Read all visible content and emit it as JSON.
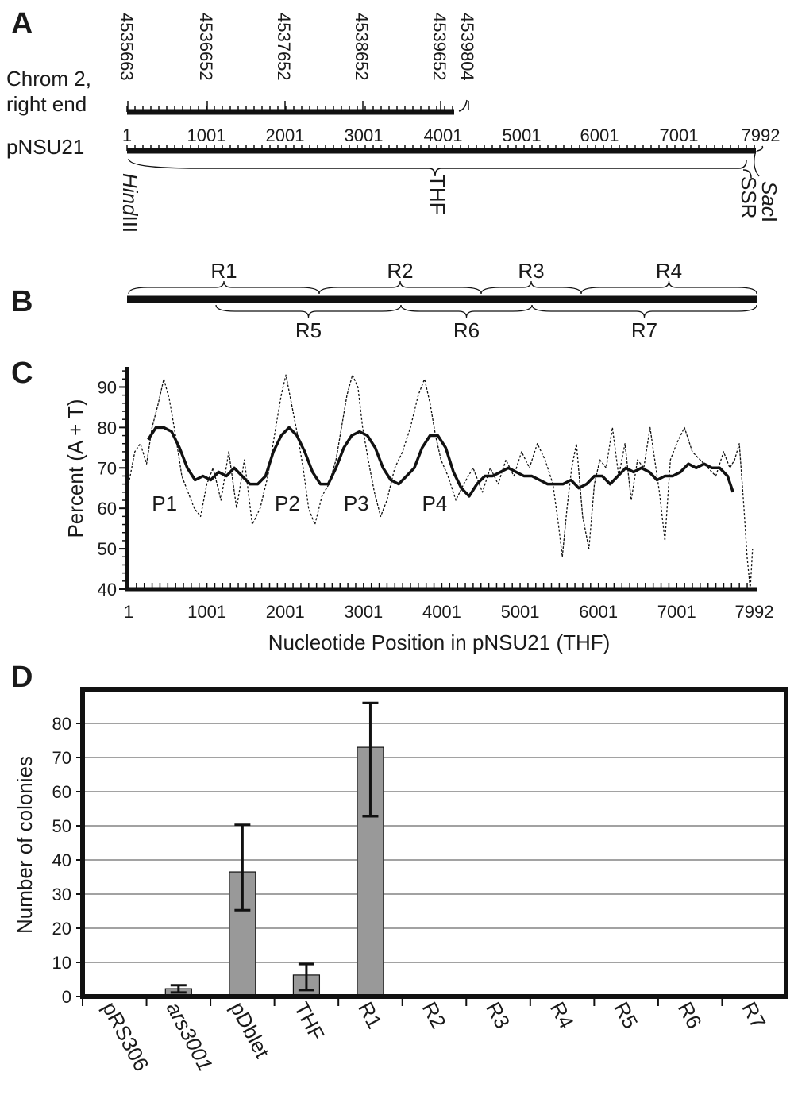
{
  "panels": {
    "a": "A",
    "b": "B",
    "c": "C",
    "d": "D"
  },
  "panel_a": {
    "chrom_label_1": "Chrom 2,",
    "chrom_label_2": "right end",
    "chrom_coords": [
      "4535663",
      "4536652",
      "4537652",
      "4538652",
      "4539652",
      "4539804"
    ],
    "plasmid_label": "pNSU21",
    "plasmid_ticks": [
      "1",
      "1001",
      "2001",
      "3001",
      "4001",
      "5001",
      "6001",
      "7001",
      "7992"
    ],
    "hindiii_italic": "Hind",
    "hindiii_roman": "III",
    "thf_label": "THF",
    "ssr_label": "SSR",
    "saci_italic": "Sac",
    "saci_roman": "I"
  },
  "panel_b": {
    "regions_top": [
      "R1",
      "R2",
      "R3",
      "R4"
    ],
    "regions_bottom": [
      "R5",
      "R6",
      "R7"
    ]
  },
  "chart_data": [
    {
      "type": "line",
      "ylabel": "Percent (A + T)",
      "xlabel": "Nucleotide Position in pNSU21 (THF)",
      "xlim": [
        1,
        7992
      ],
      "ylim": [
        40,
        95
      ],
      "x_ticks": [
        "1",
        "1001",
        "2001",
        "3001",
        "4001",
        "5001",
        "6001",
        "7001",
        "7992"
      ],
      "y_ticks": [
        "40",
        "50",
        "60",
        "70",
        "80",
        "90"
      ],
      "peak_labels": [
        {
          "label": "P1",
          "x": 480,
          "y": 61
        },
        {
          "label": "P2",
          "x": 2050,
          "y": 61
        },
        {
          "label": "P3",
          "x": 2930,
          "y": 61
        },
        {
          "label": "P4",
          "x": 3930,
          "y": 61
        }
      ],
      "series": [
        {
          "style": "dashed",
          "x": [
            1,
            80,
            150,
            230,
            300,
            380,
            450,
            520,
            600,
            680,
            760,
            840,
            920,
            1000,
            1080,
            1180,
            1280,
            1380,
            1480,
            1580,
            1680,
            1780,
            1880,
            1950,
            2010,
            2080,
            2160,
            2230,
            2300,
            2380,
            2470,
            2560,
            2650,
            2720,
            2790,
            2860,
            2930,
            2990,
            3060,
            3140,
            3220,
            3300,
            3400,
            3500,
            3600,
            3700,
            3780,
            3850,
            3920,
            3990,
            4080,
            4180,
            4280,
            4400,
            4520,
            4620,
            4720,
            4820,
            4920,
            5020,
            5120,
            5220,
            5320,
            5420,
            5490,
            5540,
            5600,
            5660,
            5720,
            5800,
            5880,
            5950,
            6020,
            6100,
            6180,
            6260,
            6340,
            6420,
            6500,
            6580,
            6660,
            6720,
            6780,
            6850,
            6920,
            7000,
            7100,
            7200,
            7300,
            7400,
            7500,
            7600,
            7680,
            7740,
            7800,
            7860,
            7900,
            7940,
            7970
          ],
          "values": [
            66,
            74,
            76,
            71,
            80,
            86,
            92,
            87,
            78,
            68,
            64,
            60,
            58,
            66,
            70,
            62,
            74,
            60,
            72,
            56,
            60,
            68,
            80,
            88,
            93,
            86,
            78,
            70,
            60,
            56,
            63,
            66,
            72,
            80,
            88,
            93,
            90,
            80,
            72,
            64,
            58,
            62,
            70,
            74,
            80,
            88,
            92,
            86,
            78,
            72,
            68,
            62,
            66,
            70,
            64,
            70,
            66,
            72,
            68,
            74,
            70,
            76,
            72,
            66,
            56,
            48,
            60,
            70,
            76,
            58,
            50,
            66,
            72,
            70,
            80,
            68,
            76,
            62,
            72,
            70,
            80,
            72,
            64,
            52,
            72,
            76,
            80,
            74,
            72,
            70,
            68,
            74,
            70,
            72,
            76,
            60,
            48,
            40,
            50
          ]
        },
        {
          "style": "solid",
          "x": [
            250,
            350,
            450,
            550,
            650,
            750,
            850,
            950,
            1050,
            1150,
            1250,
            1350,
            1450,
            1550,
            1650,
            1750,
            1850,
            1950,
            2050,
            2150,
            2250,
            2350,
            2450,
            2550,
            2650,
            2750,
            2850,
            2950,
            3050,
            3150,
            3250,
            3350,
            3450,
            3550,
            3650,
            3750,
            3850,
            3950,
            4050,
            4150,
            4250,
            4350,
            4450,
            4550,
            4650,
            4750,
            4850,
            4950,
            5050,
            5150,
            5250,
            5350,
            5450,
            5550,
            5650,
            5750,
            5850,
            5950,
            6050,
            6150,
            6250,
            6350,
            6450,
            6550,
            6650,
            6750,
            6850,
            6950,
            7050,
            7150,
            7250,
            7350,
            7450,
            7550,
            7650,
            7720
          ],
          "values": [
            77,
            80,
            80,
            79,
            75,
            70,
            67,
            68,
            67,
            69,
            68,
            70,
            68,
            66,
            66,
            68,
            74,
            78,
            80,
            78,
            74,
            69,
            66,
            66,
            70,
            75,
            78,
            79,
            78,
            75,
            70,
            67,
            66,
            68,
            70,
            75,
            78,
            78,
            75,
            69,
            65,
            63,
            66,
            68,
            68,
            69,
            70,
            69,
            68,
            68,
            67,
            66,
            66,
            66,
            67,
            65,
            66,
            68,
            68,
            66,
            68,
            70,
            69,
            70,
            69,
            67,
            68,
            68,
            69,
            71,
            70,
            71,
            70,
            70,
            68,
            64
          ]
        }
      ]
    },
    {
      "type": "bar",
      "ylabel": "Number of colonies",
      "ylim": [
        0,
        90
      ],
      "y_ticks": [
        "0",
        "10",
        "20",
        "30",
        "40",
        "50",
        "60",
        "70",
        "80"
      ],
      "grid": true,
      "categories": [
        "pRS306",
        "ars3001",
        "pDblet",
        "THF",
        "R1",
        "R2",
        "R3",
        "R4",
        "R5",
        "R6",
        "R7"
      ],
      "italic_categories": [
        "ars3001"
      ],
      "values": [
        0.3,
        2.3,
        36.5,
        6.3,
        73,
        0.3,
        0.3,
        0.3,
        0.3,
        0.3,
        0.3
      ],
      "error_low": [
        null,
        1.2,
        25.3,
        1.9,
        52.8,
        null,
        null,
        null,
        null,
        null,
        null
      ],
      "error_high": [
        null,
        3.3,
        50.3,
        9.5,
        86,
        null,
        null,
        null,
        null,
        null,
        null
      ],
      "bar_color": "#999999"
    }
  ]
}
